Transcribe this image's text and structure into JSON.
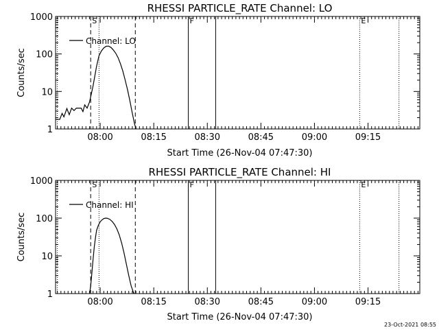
{
  "timestamp": "23-Oct-2021 08:55",
  "chart_data": [
    {
      "type": "line",
      "title": "RHESSI PARTICLE_RATE Channel: LO",
      "xlabel": "Start Time (26-Nov-04 07:47:30)",
      "ylabel": "Counts/sec",
      "yscale": "log",
      "xlim": [
        "07:47:30",
        "09:29:30"
      ],
      "ylim": [
        1,
        1000
      ],
      "xticks": [
        "08:00",
        "08:15",
        "08:30",
        "08:45",
        "09:00",
        "09:15"
      ],
      "yticks": [
        "1",
        "10",
        "100",
        "1000"
      ],
      "legend": "top-left",
      "series": [
        {
          "name": "Channel: LO",
          "color": "#000000",
          "points": [
            [
              "07:47:30",
              1.8
            ],
            [
              "07:48:40",
              1.8
            ],
            [
              "07:49:20",
              2.6
            ],
            [
              "07:49:50",
              2.1
            ],
            [
              "07:50:40",
              3.5
            ],
            [
              "07:51:20",
              2.4
            ],
            [
              "07:52:00",
              3.6
            ],
            [
              "07:52:40",
              3.1
            ],
            [
              "07:53:20",
              3.6
            ],
            [
              "07:54:00",
              3.6
            ],
            [
              "07:54:40",
              3.6
            ],
            [
              "07:55:10",
              2.9
            ],
            [
              "07:55:40",
              4.4
            ],
            [
              "07:56:20",
              3.6
            ],
            [
              "07:57:00",
              5.2
            ],
            [
              "07:57:30",
              8.5
            ],
            [
              "07:58:00",
              14
            ],
            [
              "07:58:30",
              26
            ],
            [
              "07:59:00",
              48
            ],
            [
              "07:59:40",
              90
            ],
            [
              "08:00:20",
              120
            ],
            [
              "08:01:00",
              145
            ],
            [
              "08:01:40",
              160
            ],
            [
              "08:02:20",
              162
            ],
            [
              "08:03:00",
              150
            ],
            [
              "08:03:40",
              128
            ],
            [
              "08:04:20",
              105
            ],
            [
              "08:05:00",
              80
            ],
            [
              "08:05:40",
              55
            ],
            [
              "08:06:20",
              35
            ],
            [
              "08:07:00",
              20
            ],
            [
              "08:07:40",
              11
            ],
            [
              "08:08:20",
              5.5
            ],
            [
              "08:09:00",
              2.6
            ],
            [
              "08:09:40",
              1.3
            ],
            [
              "08:10:10",
              0.95
            ]
          ]
        }
      ],
      "markers": [
        {
          "label": "",
          "time": "07:48:00",
          "style": "dotted"
        },
        {
          "label": "S",
          "time": "07:57:20",
          "style": "dashed"
        },
        {
          "label": "",
          "time": "07:59:40",
          "style": "dotted"
        },
        {
          "label": "",
          "time": "08:09:50",
          "style": "dashed"
        },
        {
          "label": "F",
          "time": "08:24:40",
          "style": "solid"
        },
        {
          "label": "",
          "time": "08:32:20",
          "style": "solid"
        },
        {
          "label": "E",
          "time": "09:12:40",
          "style": "dotted"
        },
        {
          "label": "",
          "time": "09:23:40",
          "style": "dotted"
        }
      ]
    },
    {
      "type": "line",
      "title": "RHESSI PARTICLE_RATE Channel: HI",
      "xlabel": "Start Time (26-Nov-04 07:47:30)",
      "ylabel": "Counts/sec",
      "yscale": "log",
      "xlim": [
        "07:47:30",
        "09:29:30"
      ],
      "ylim": [
        1,
        1000
      ],
      "xticks": [
        "08:00",
        "08:15",
        "08:30",
        "08:45",
        "09:00",
        "09:15"
      ],
      "yticks": [
        "1",
        "10",
        "100",
        "1000"
      ],
      "legend": "top-left",
      "series": [
        {
          "name": "Channel: HI",
          "color": "#000000",
          "points": [
            [
              "07:57:00",
              0.95
            ],
            [
              "07:57:20",
              1.6
            ],
            [
              "07:57:40",
              3.5
            ],
            [
              "07:58:00",
              8
            ],
            [
              "07:58:20",
              17
            ],
            [
              "07:58:40",
              30
            ],
            [
              "07:59:00",
              48
            ],
            [
              "07:59:30",
              65
            ],
            [
              "08:00:00",
              80
            ],
            [
              "08:00:30",
              90
            ],
            [
              "08:01:00",
              97
            ],
            [
              "08:01:30",
              100
            ],
            [
              "08:02:00",
              99
            ],
            [
              "08:02:40",
              93
            ],
            [
              "08:03:20",
              82
            ],
            [
              "08:04:00",
              68
            ],
            [
              "08:04:40",
              52
            ],
            [
              "08:05:20",
              36
            ],
            [
              "08:06:00",
              22
            ],
            [
              "08:06:40",
              12
            ],
            [
              "08:07:20",
              6
            ],
            [
              "08:08:00",
              3
            ],
            [
              "08:08:40",
              1.6
            ],
            [
              "08:09:20",
              1.05
            ],
            [
              "08:09:50",
              0.95
            ]
          ]
        }
      ],
      "markers": [
        {
          "label": "",
          "time": "07:48:00",
          "style": "dotted"
        },
        {
          "label": "S",
          "time": "07:57:20",
          "style": "dashed"
        },
        {
          "label": "",
          "time": "07:59:40",
          "style": "dotted"
        },
        {
          "label": "",
          "time": "08:09:50",
          "style": "dashed"
        },
        {
          "label": "F",
          "time": "08:24:40",
          "style": "solid"
        },
        {
          "label": "",
          "time": "08:32:20",
          "style": "solid"
        },
        {
          "label": "E",
          "time": "09:12:40",
          "style": "dotted"
        },
        {
          "label": "",
          "time": "09:23:40",
          "style": "dotted"
        }
      ]
    }
  ]
}
